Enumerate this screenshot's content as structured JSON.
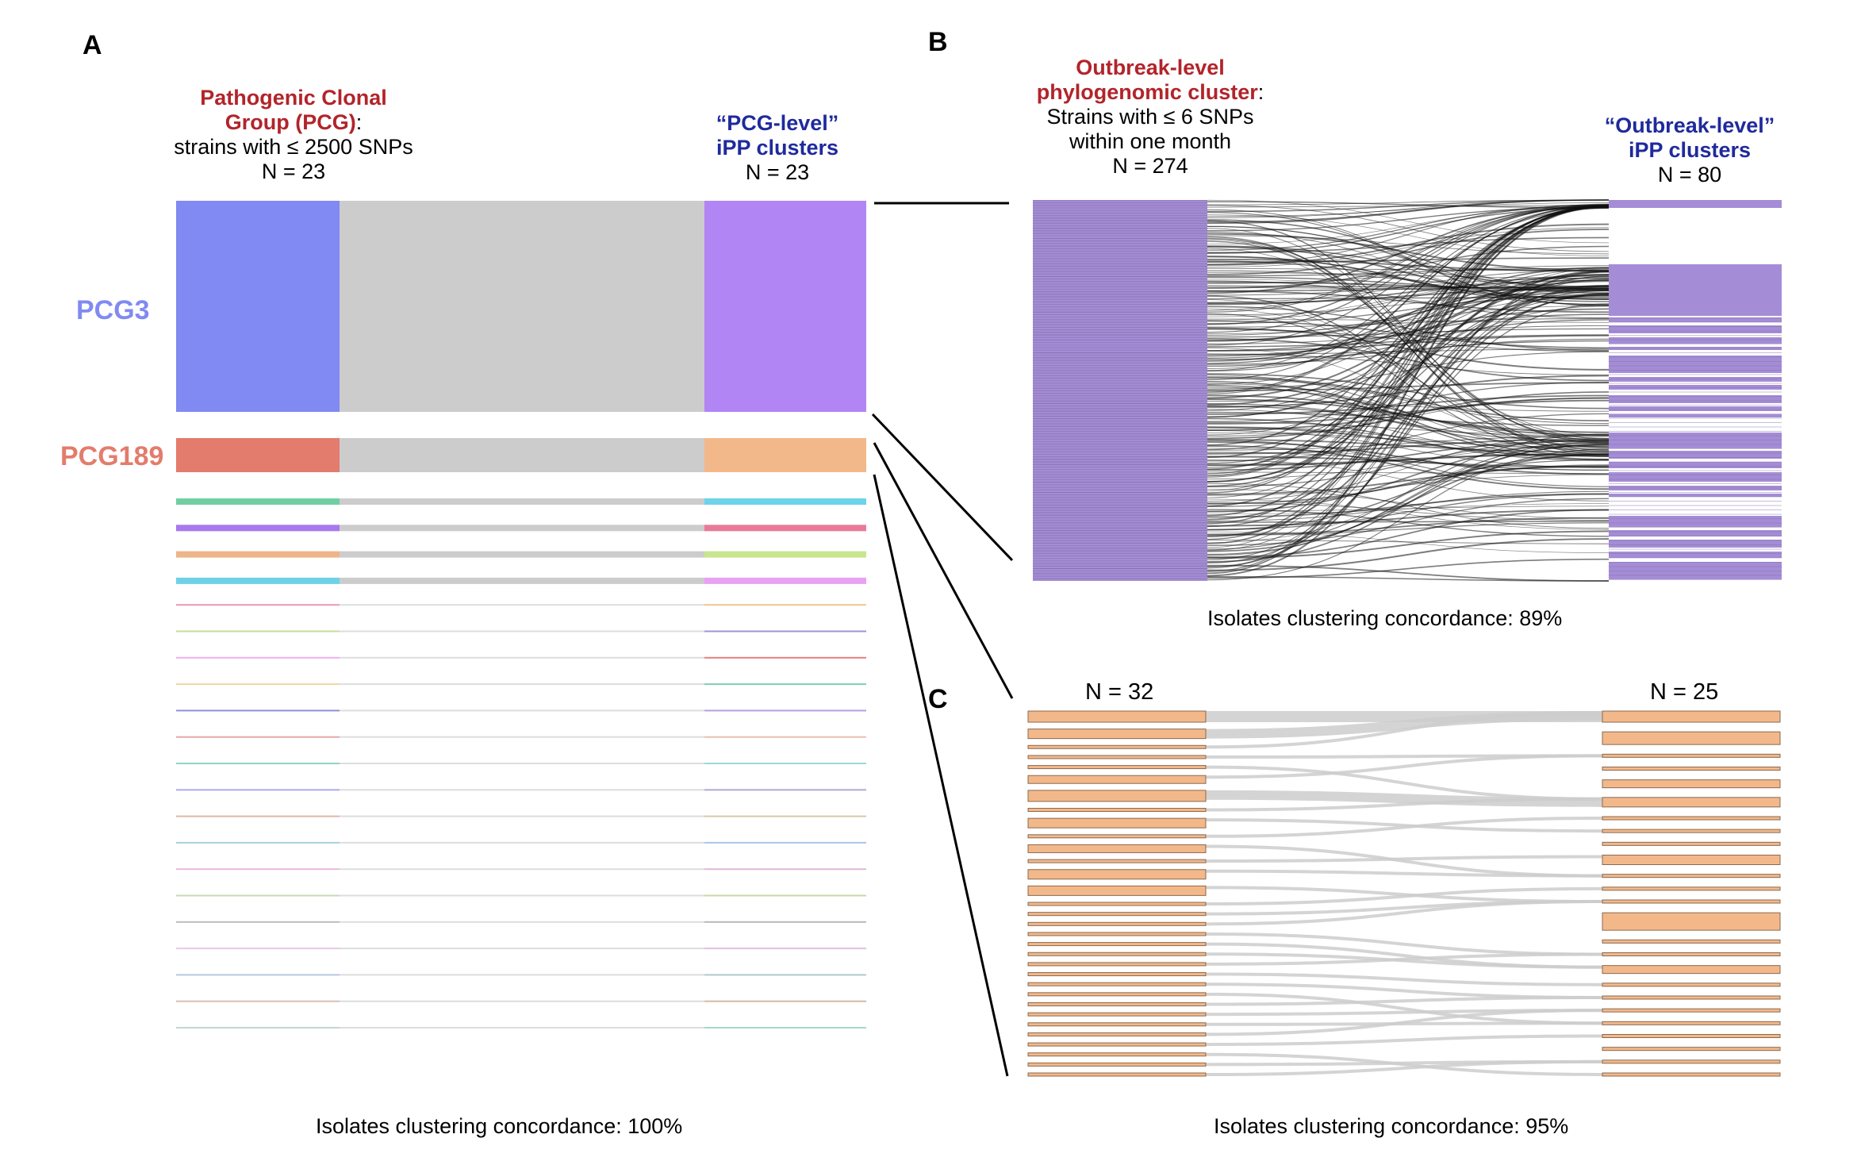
{
  "panel_a": {
    "letter": "A",
    "left_header": {
      "line1": "Pathogenic Clonal",
      "line2": "Group (PCG)",
      "line2_suffix": ":",
      "line3": "strains with ≤ 2500 SNPs",
      "line4": "N = 23"
    },
    "right_header": {
      "line1": "“PCG-level”",
      "line2": "iPP clusters",
      "line3": "N = 23"
    },
    "label_pcg3": "PCG3",
    "label_pcg189": "PCG189",
    "footer": "Isolates clustering concordance: 100%",
    "colors": {
      "pcg3_left": "#8189f2",
      "pcg3_right": "#b185f3",
      "pcg189_left": "#e37c6c",
      "pcg189_right": "#f3b88a",
      "flow": "#cccccc"
    },
    "small_left_colors": [
      "#6fcfa3",
      "#a779ee",
      "#eeb48a",
      "#6fd1e6",
      "#ee97b0",
      "#c6dc98",
      "#eeb1ee",
      "#edd7a0",
      "#8f8fd8",
      "#e3a8a8",
      "#8fd5c8",
      "#aaaaee",
      "#ddb8a8",
      "#a8d0dd",
      "#e8b8e0",
      "#c8d8b8",
      "#bbbbbb",
      "#e8c8e8",
      "#b8c8e0",
      "#d8c0b0",
      "#c0d8d0"
    ],
    "small_right_colors": [
      "#6dd3ea",
      "#e87b98",
      "#c8e68e",
      "#e8a2f2",
      "#ecc890",
      "#9c94d8",
      "#e88080",
      "#7fd0b0",
      "#b89ce0",
      "#e8c0b0",
      "#9ad8d8",
      "#b0a8d8",
      "#d8c8a8",
      "#a8c8e8",
      "#e0b8d8",
      "#c8d8a8",
      "#b8b8b8",
      "#e0c0e0",
      "#b0c8d0",
      "#d8b8a8",
      "#a8d8c8"
    ]
  },
  "panel_b": {
    "letter": "B",
    "left_header": {
      "line1": "Outbreak-level",
      "line2": "phylogenomic cluster",
      "line2_suffix": ":",
      "line3": "Strains  with ≤ 6 SNPs",
      "line4": "within one month",
      "line5": "N = 274"
    },
    "right_header": {
      "line1": "“Outbreak-level”",
      "line2": "iPP clusters",
      "line3": "N = 80"
    },
    "footer": "Isolates clustering concordance:  89%",
    "colors": {
      "bar": "#a58cd6",
      "bar_dark": "#7f70a8",
      "flow": "#111111"
    }
  },
  "panel_c": {
    "letter": "C",
    "left_count": "N = 32",
    "right_count": "N = 25",
    "footer": "Isolates clustering concordance: 95%",
    "colors": {
      "bar": "#f3b88a",
      "bar_edge": "#8a6a50",
      "flow": "#cccccc"
    }
  },
  "connector_color": "#000000"
}
